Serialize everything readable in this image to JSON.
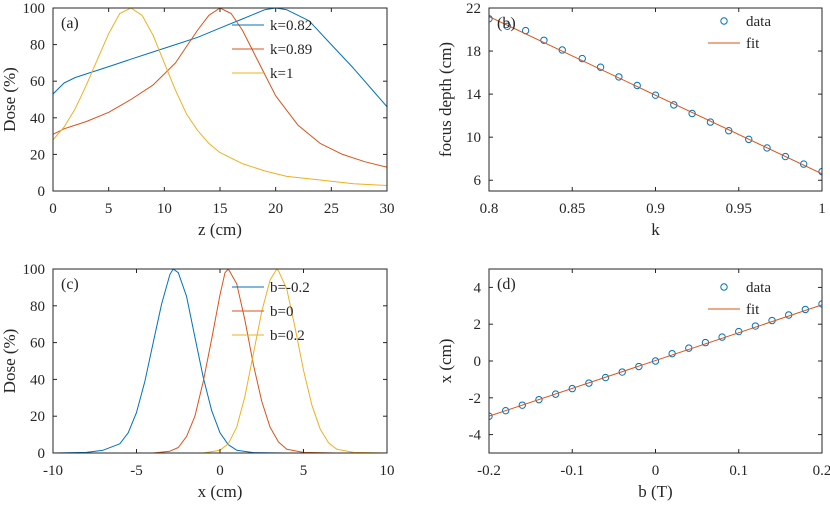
{
  "figure": {
    "background": "#ffffff",
    "axis_color": "#262626"
  },
  "colors": {
    "blue": "#0072BD",
    "orange": "#D95319",
    "yellow": "#EDB120"
  },
  "chart_data": [
    {
      "id": "a",
      "type": "line",
      "panel_label": "(a)",
      "xlabel": "z (cm)",
      "ylabel": "Dose  (%)",
      "xlim": [
        0,
        30
      ],
      "ylim": [
        0,
        100
      ],
      "xticks": [
        0,
        5,
        10,
        15,
        20,
        25,
        30
      ],
      "yticks": [
        0,
        20,
        40,
        60,
        80,
        100
      ],
      "legend_position": "top-right",
      "series": [
        {
          "name": "k=0.82",
          "color": "#0072BD",
          "x": [
            0,
            1,
            2,
            3,
            5,
            7,
            9,
            11,
            13,
            15,
            17,
            19,
            20,
            21,
            23,
            25,
            27,
            29,
            30
          ],
          "y": [
            53,
            59,
            62,
            64,
            68,
            72,
            76,
            80,
            84,
            89,
            94,
            99,
            100,
            99,
            93,
            80,
            67,
            53,
            46
          ]
        },
        {
          "name": "k=0.89",
          "color": "#D95319",
          "x": [
            0,
            1,
            2,
            3,
            5,
            7,
            9,
            11,
            12,
            13,
            14,
            15,
            16,
            17,
            18,
            19,
            20,
            22,
            24,
            26,
            28,
            30
          ],
          "y": [
            31,
            34,
            36,
            38,
            43,
            50,
            58,
            70,
            79,
            88,
            96,
            100,
            97,
            88,
            76,
            64,
            52,
            36,
            26,
            20,
            16,
            13
          ]
        },
        {
          "name": "k=1",
          "color": "#EDB120",
          "x": [
            0,
            1,
            2,
            3,
            4,
            5,
            6,
            7,
            8,
            9,
            10,
            11,
            12,
            13,
            14,
            15,
            17,
            19,
            21,
            24,
            27,
            30
          ],
          "y": [
            28,
            35,
            45,
            58,
            72,
            86,
            97,
            100,
            96,
            85,
            70,
            55,
            42,
            33,
            26,
            21,
            15,
            11,
            8,
            6,
            4,
            3
          ]
        }
      ]
    },
    {
      "id": "b",
      "type": "scatter",
      "panel_label": "(b)",
      "xlabel": "k",
      "ylabel": "focus depth  (cm)",
      "xlim": [
        0.8,
        1.0
      ],
      "ylim": [
        5,
        22
      ],
      "xticks": [
        0.8,
        0.85,
        0.9,
        0.95,
        1
      ],
      "yticks": [
        6,
        10,
        14,
        18,
        22
      ],
      "xtick_labels": [
        "0.8",
        "0.85",
        "0.9",
        "0.95",
        "1"
      ],
      "legend_position": "top-right",
      "series": [
        {
          "name": "data",
          "marker": "o",
          "color": "#0072BD",
          "x": [
            0.8,
            0.811,
            0.822,
            0.833,
            0.844,
            0.856,
            0.867,
            0.878,
            0.889,
            0.9,
            0.911,
            0.922,
            0.933,
            0.944,
            0.956,
            0.967,
            0.978,
            0.989,
            1.0
          ],
          "y": [
            21.0,
            20.3,
            19.9,
            19.0,
            18.1,
            17.3,
            16.5,
            15.6,
            14.8,
            13.9,
            13.0,
            12.2,
            11.4,
            10.6,
            9.8,
            9.0,
            8.2,
            7.5,
            6.8
          ]
        },
        {
          "name": "fit",
          "marker": "line",
          "color": "#D95319",
          "x": [
            0.8,
            1.0
          ],
          "y": [
            21.2,
            6.6
          ]
        }
      ]
    },
    {
      "id": "c",
      "type": "line",
      "panel_label": "(c)",
      "xlabel": "x (cm)",
      "ylabel": "Dose  (%)",
      "xlim": [
        -10,
        10
      ],
      "ylim": [
        0,
        100
      ],
      "xticks": [
        -10,
        -5,
        0,
        5,
        10
      ],
      "yticks": [
        0,
        20,
        40,
        60,
        80,
        100
      ],
      "legend_position": "top-right",
      "series": [
        {
          "name": "b=-0.2",
          "color": "#0072BD",
          "x": [
            -10,
            -8,
            -7,
            -6,
            -5.5,
            -5,
            -4.5,
            -4,
            -3.5,
            -3,
            -2.8,
            -2.5,
            -2,
            -1.5,
            -1,
            -0.5,
            0,
            0.5,
            1,
            2,
            4,
            6,
            10
          ],
          "y": [
            0,
            0.3,
            1.5,
            5,
            11,
            22,
            39,
            60,
            81,
            97,
            100,
            98,
            85,
            63,
            41,
            23,
            11,
            4.5,
            1.5,
            0.2,
            0,
            0,
            0
          ]
        },
        {
          "name": "b=0",
          "color": "#D95319",
          "x": [
            -10,
            -4,
            -3,
            -2.5,
            -2,
            -1.5,
            -1,
            -0.5,
            0,
            0.3,
            0.5,
            1,
            1.5,
            2,
            2.5,
            3,
            3.5,
            4,
            5,
            7,
            10
          ],
          "y": [
            0,
            0,
            1,
            3,
            9,
            20,
            39,
            62,
            86,
            98,
            100,
            92,
            72,
            48,
            28,
            14,
            6,
            2,
            0.3,
            0,
            0
          ]
        },
        {
          "name": "b=0.2",
          "color": "#EDB120",
          "x": [
            -10,
            -1,
            0,
            0.5,
            1,
            1.5,
            2,
            2.5,
            3,
            3.4,
            3.5,
            4,
            4.5,
            5,
            5.5,
            6,
            6.5,
            7,
            8,
            10
          ],
          "y": [
            0,
            0,
            1.5,
            5,
            14,
            31,
            54,
            77,
            94,
            100,
            99,
            89,
            68,
            45,
            26,
            13,
            5.5,
            2,
            0.3,
            0
          ]
        }
      ]
    },
    {
      "id": "d",
      "type": "scatter",
      "panel_label": "(d)",
      "xlabel": "b  (T)",
      "ylabel": "x  (cm)",
      "xlim": [
        -0.2,
        0.2
      ],
      "ylim": [
        -5,
        5
      ],
      "xticks": [
        -0.2,
        -0.1,
        0,
        0.1,
        0.2
      ],
      "yticks": [
        -4,
        -2,
        0,
        2,
        4
      ],
      "legend_position": "top-right",
      "series": [
        {
          "name": "data",
          "marker": "o",
          "color": "#0072BD",
          "x": [
            -0.2,
            -0.18,
            -0.16,
            -0.14,
            -0.12,
            -0.1,
            -0.08,
            -0.06,
            -0.04,
            -0.02,
            0,
            0.02,
            0.04,
            0.06,
            0.08,
            0.1,
            0.12,
            0.14,
            0.16,
            0.18,
            0.2
          ],
          "y": [
            -3.0,
            -2.7,
            -2.4,
            -2.1,
            -1.8,
            -1.5,
            -1.2,
            -0.9,
            -0.6,
            -0.3,
            0,
            0.4,
            0.7,
            1.0,
            1.3,
            1.6,
            1.9,
            2.2,
            2.5,
            2.8,
            3.1
          ]
        },
        {
          "name": "fit",
          "marker": "line",
          "color": "#D95319",
          "x": [
            -0.2,
            0.2
          ],
          "y": [
            -3.0,
            3.05
          ]
        }
      ]
    }
  ]
}
